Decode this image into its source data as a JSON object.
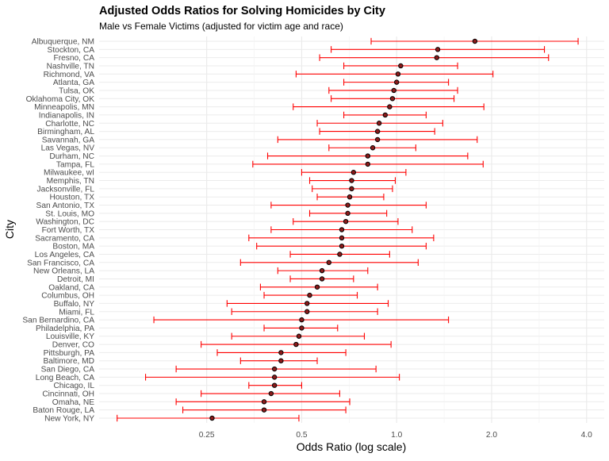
{
  "chart_data": {
    "type": "scatter",
    "title": "Adjusted Odds Ratios for Solving Homicides by City",
    "subtitle": "Male vs Female Victims (adjusted for victim age and race)",
    "xlabel": "Odds Ratio (log scale)",
    "ylabel": "City",
    "x_scale": "log2",
    "xlim": [
      0.114,
      4.55
    ],
    "x_ticks": [
      0.25,
      0.5,
      1.0,
      2.0,
      4.0
    ],
    "x_tick_labels": [
      "0.25",
      "0.5",
      "1.0",
      "2.0",
      "4.0"
    ],
    "grid": true,
    "legend": "none",
    "colors": {
      "point": "#000000",
      "point_fill": "#8b1a1a",
      "error_bar": "#ff0000",
      "gridline": "#ebebeb"
    },
    "cities": [
      {
        "city": "Albuquerque, NM",
        "or": 1.77,
        "lo": 0.83,
        "hi": 3.76
      },
      {
        "city": "Stockton, CA",
        "or": 1.35,
        "lo": 0.62,
        "hi": 2.94
      },
      {
        "city": "Fresno, CA",
        "or": 1.34,
        "lo": 0.57,
        "hi": 3.03
      },
      {
        "city": "Nashville, TN",
        "or": 1.03,
        "lo": 0.68,
        "hi": 1.56
      },
      {
        "city": "Richmond, VA",
        "or": 1.01,
        "lo": 0.48,
        "hi": 2.02
      },
      {
        "city": "Atlanta, GA",
        "or": 1.0,
        "lo": 0.68,
        "hi": 1.46
      },
      {
        "city": "Tulsa, OK",
        "or": 0.98,
        "lo": 0.61,
        "hi": 1.56
      },
      {
        "city": "Oklahoma City, OK",
        "or": 0.97,
        "lo": 0.62,
        "hi": 1.52
      },
      {
        "city": "Minneapolis, MN",
        "or": 0.95,
        "lo": 0.47,
        "hi": 1.89
      },
      {
        "city": "Indianapolis, IN",
        "or": 0.92,
        "lo": 0.68,
        "hi": 1.24
      },
      {
        "city": "Charlotte, NC",
        "or": 0.88,
        "lo": 0.56,
        "hi": 1.4
      },
      {
        "city": "Birmingham, AL",
        "or": 0.87,
        "lo": 0.57,
        "hi": 1.32
      },
      {
        "city": "Savannah, GA",
        "or": 0.87,
        "lo": 0.42,
        "hi": 1.8
      },
      {
        "city": "Las Vegas, NV",
        "or": 0.84,
        "lo": 0.61,
        "hi": 1.15
      },
      {
        "city": "Durham, NC",
        "or": 0.81,
        "lo": 0.39,
        "hi": 1.68
      },
      {
        "city": "Tampa, FL",
        "or": 0.81,
        "lo": 0.35,
        "hi": 1.88
      },
      {
        "city": "Milwaukee, wI",
        "or": 0.73,
        "lo": 0.5,
        "hi": 1.07
      },
      {
        "city": "Memphis, TN",
        "or": 0.72,
        "lo": 0.53,
        "hi": 0.99
      },
      {
        "city": "Jacksonville, FL",
        "or": 0.72,
        "lo": 0.54,
        "hi": 0.97
      },
      {
        "city": "Houston, TX",
        "or": 0.71,
        "lo": 0.56,
        "hi": 0.91
      },
      {
        "city": "San Antonio, TX",
        "or": 0.7,
        "lo": 0.4,
        "hi": 1.24
      },
      {
        "city": "St. Louis, MO",
        "or": 0.7,
        "lo": 0.53,
        "hi": 0.93
      },
      {
        "city": "Washington, DC",
        "or": 0.69,
        "lo": 0.47,
        "hi": 1.01
      },
      {
        "city": "Fort Worth, TX",
        "or": 0.67,
        "lo": 0.4,
        "hi": 1.12
      },
      {
        "city": "Sacramento, CA",
        "or": 0.67,
        "lo": 0.34,
        "hi": 1.31
      },
      {
        "city": "Boston, MA",
        "or": 0.67,
        "lo": 0.36,
        "hi": 1.24
      },
      {
        "city": "Los Angeles, CA",
        "or": 0.66,
        "lo": 0.46,
        "hi": 0.95
      },
      {
        "city": "San Francisco, CA",
        "or": 0.61,
        "lo": 0.32,
        "hi": 1.17
      },
      {
        "city": "New Orleans, LA",
        "or": 0.58,
        "lo": 0.42,
        "hi": 0.81
      },
      {
        "city": "Detroit, MI",
        "or": 0.58,
        "lo": 0.46,
        "hi": 0.73
      },
      {
        "city": "Oakland, CA",
        "or": 0.56,
        "lo": 0.37,
        "hi": 0.87
      },
      {
        "city": "Columbus, OH",
        "or": 0.53,
        "lo": 0.38,
        "hi": 0.75
      },
      {
        "city": "Buffalo, NY",
        "or": 0.52,
        "lo": 0.29,
        "hi": 0.94
      },
      {
        "city": "Miami, FL",
        "or": 0.52,
        "lo": 0.3,
        "hi": 0.87
      },
      {
        "city": "San Bernardino, CA",
        "or": 0.5,
        "lo": 0.17,
        "hi": 1.46
      },
      {
        "city": "Philadelphia, PA",
        "or": 0.5,
        "lo": 0.38,
        "hi": 0.65
      },
      {
        "city": "Louisville, KY",
        "or": 0.49,
        "lo": 0.3,
        "hi": 0.79
      },
      {
        "city": "Denver, CO",
        "or": 0.48,
        "lo": 0.24,
        "hi": 0.96
      },
      {
        "city": "Pittsburgh, PA",
        "or": 0.43,
        "lo": 0.27,
        "hi": 0.69
      },
      {
        "city": "Baltimore, MD",
        "or": 0.43,
        "lo": 0.32,
        "hi": 0.56
      },
      {
        "city": "San Diego, CA",
        "or": 0.41,
        "lo": 0.2,
        "hi": 0.86
      },
      {
        "city": "Long Beach, CA",
        "or": 0.41,
        "lo": 0.16,
        "hi": 1.02
      },
      {
        "city": "Chicago, IL",
        "or": 0.41,
        "lo": 0.34,
        "hi": 0.5
      },
      {
        "city": "Cincinnati, OH",
        "or": 0.4,
        "lo": 0.24,
        "hi": 0.66
      },
      {
        "city": "Omaha, NE",
        "or": 0.38,
        "lo": 0.2,
        "hi": 0.71
      },
      {
        "city": "Baton Rouge, LA",
        "or": 0.38,
        "lo": 0.21,
        "hi": 0.69
      },
      {
        "city": "New York, NY",
        "or": 0.26,
        "lo": 0.13,
        "hi": 0.49
      }
    ]
  }
}
